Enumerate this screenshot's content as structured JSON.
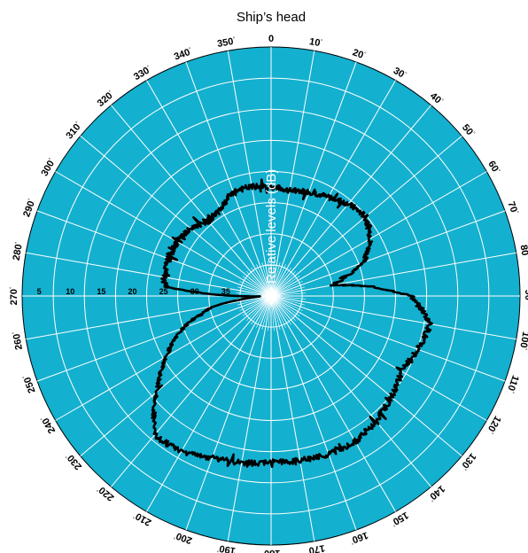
{
  "chart_data": {
    "type": "line",
    "title": "Ship’s head",
    "ylabel": "Relative levels (dB)",
    "projection": "polar",
    "angle_zero": "top",
    "angle_direction": "clockwise",
    "radial_axis_direction": "center-outward decreasing",
    "rlim": [
      0,
      40
    ],
    "radial_ticks": [
      5,
      10,
      15,
      20,
      25,
      30,
      35
    ],
    "angle_ticks": [
      "0",
      "10",
      "20",
      "30",
      "40",
      "50",
      "60",
      "70",
      "80",
      "90",
      "100",
      "110",
      "120",
      "130",
      "140",
      "150",
      "160",
      "170",
      "180",
      "190",
      "200",
      "210",
      "220",
      "230",
      "240",
      "250",
      "260",
      "270",
      "280",
      "290",
      "300",
      "310",
      "320",
      "330",
      "340",
      "350"
    ],
    "degree_symbol": "°",
    "grid": true,
    "background_color": "#14b0cf",
    "grid_color": "#ffffff",
    "line_color": "#000000",
    "series": [
      {
        "theta": [
          0,
          10,
          20,
          30,
          40,
          50,
          60,
          70,
          80,
          90,
          100,
          110,
          120,
          130,
          140,
          150,
          160,
          170,
          180,
          190,
          200,
          210,
          220,
          230,
          240,
          250,
          260,
          263,
          266,
          268,
          270,
          272,
          275,
          280,
          290,
          300,
          310,
          320,
          330,
          340,
          350,
          360
        ],
        "r": [
          17.5,
          17.2,
          17.8,
          18.3,
          19.3,
          19.8,
          18.5,
          15.8,
          10.0,
          22.5,
          26.0,
          25.0,
          24.2,
          25.2,
          26.2,
          27.0,
          27.0,
          26.8,
          26.7,
          27.2,
          27.6,
          28.8,
          29.2,
          24.0,
          19.5,
          15.0,
          9.2,
          5.2,
          2.8,
          1.8,
          5.5,
          10.0,
          17.0,
          17.5,
          17.5,
          17.5,
          16.8,
          15.7,
          16.2,
          17.8,
          17.8,
          17.5
        ]
      }
    ]
  }
}
